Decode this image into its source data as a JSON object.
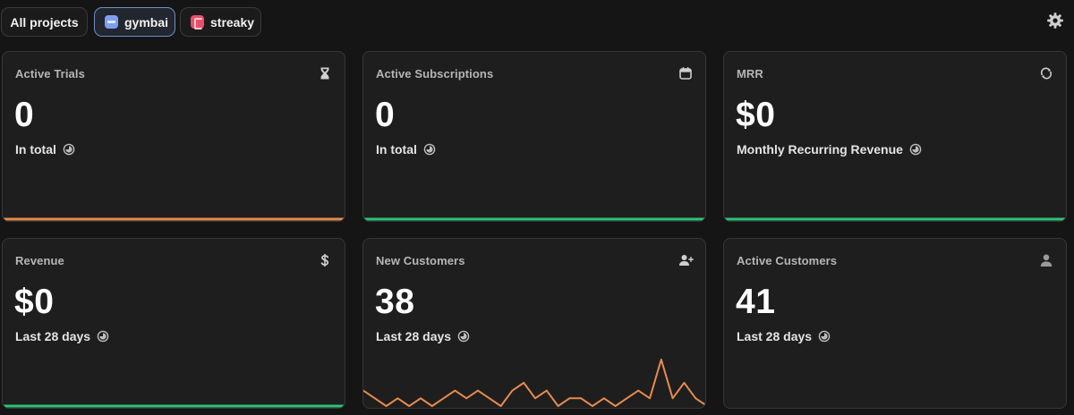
{
  "projects": [
    {
      "label": "All projects",
      "active": false
    },
    {
      "label": "gymbai",
      "active": true,
      "icon": "app-icon",
      "color": "#7e9ef2"
    },
    {
      "label": "streaky",
      "active": false,
      "icon": "app-icon",
      "color": "#ec4e68"
    }
  ],
  "colors": {
    "orange": "#e88b4e",
    "green": "#2bc37a"
  },
  "cards": [
    {
      "title": "Active Trials",
      "value": "0",
      "subtitle": "In total",
      "icon": "hourglass-icon",
      "trend": [
        0,
        0
      ]
    },
    {
      "title": "Active Subscriptions",
      "value": "0",
      "subtitle": "In total",
      "icon": "calendar-icon",
      "trend": [
        0,
        0
      ]
    },
    {
      "title": "MRR",
      "value": "$0",
      "subtitle": "Monthly Recurring Revenue",
      "icon": "refresh-icon",
      "trend": [
        0,
        0
      ]
    },
    {
      "title": "Revenue",
      "value": "$0",
      "subtitle": "Last 28 days",
      "icon": "dollar-icon",
      "trend": [
        0,
        0
      ]
    },
    {
      "title": "New Customers",
      "value": "38",
      "subtitle": "Last 28 days",
      "icon": "user-plus-icon",
      "trend": [
        2,
        1,
        0,
        1,
        0,
        1,
        0,
        1,
        2,
        1,
        2,
        1,
        0,
        2,
        3,
        1,
        2,
        0,
        1,
        1,
        0,
        1,
        0,
        1,
        2,
        1,
        6,
        1,
        3,
        1,
        0
      ]
    },
    {
      "title": "Active Customers",
      "value": "41",
      "subtitle": "Last 28 days",
      "icon": "user-icon",
      "trend": []
    }
  ]
}
